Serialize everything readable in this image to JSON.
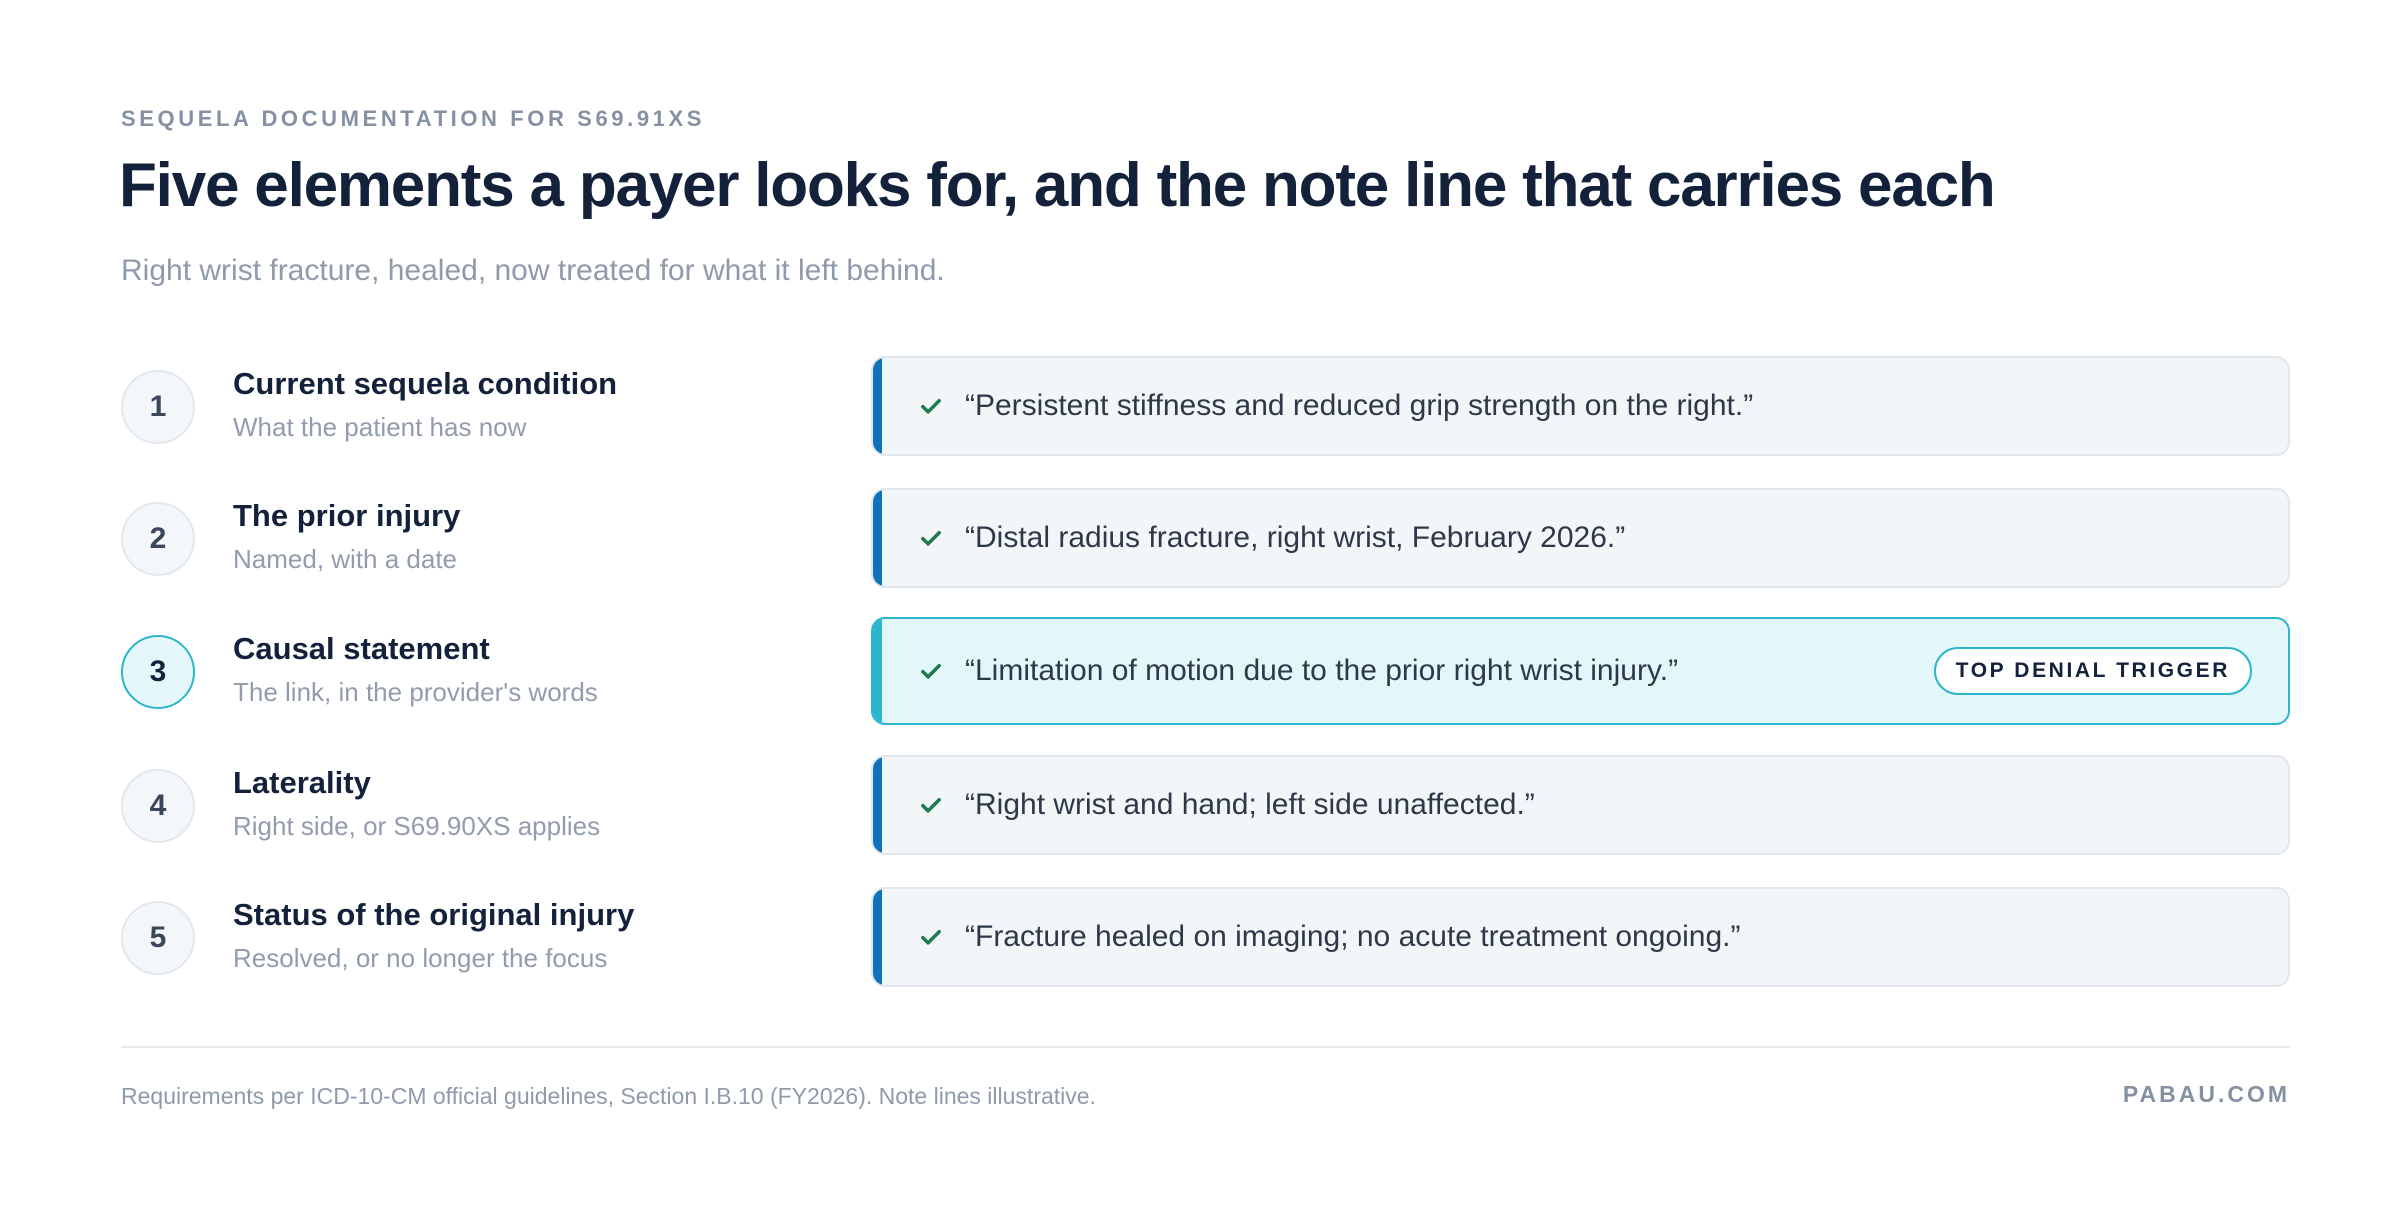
{
  "header": {
    "eyebrow": "SEQUELA DOCUMENTATION FOR S69.91XS",
    "title": "Five elements a payer looks for, and the note line that carries each",
    "subtitle": "Right wrist fracture, healed, now treated for what it left behind."
  },
  "elements": [
    {
      "number": "1",
      "label": "Current sequela condition",
      "sub": "What the patient has now",
      "note": "“Persistent stiffness and reduced grip strength on the right.”"
    },
    {
      "number": "2",
      "label": "The prior injury",
      "sub": "Named, with a date",
      "note": "“Distal radius fracture, right wrist, February 2026.”"
    },
    {
      "number": "3",
      "label": "Causal statement",
      "sub": "The link, in the provider's words",
      "note": "“Limitation of motion due to the prior right wrist injury.”",
      "badge": "TOP DENIAL TRIGGER"
    },
    {
      "number": "4",
      "label": "Laterality",
      "sub": "Right side, or S69.90XS applies",
      "note": "“Right wrist and hand; left side unaffected.”"
    },
    {
      "number": "5",
      "label": "Status of the original injury",
      "sub": "Resolved, or no longer the focus",
      "note": "“Fracture healed on imaging; no acute treatment ongoing.”"
    }
  ],
  "footer": {
    "footnote": "Requirements per ICD-10-CM official guidelines, Section I.B.10 (FY2026). Note lines illustrative.",
    "brand": "PABAU.COM"
  },
  "colors": {
    "accent_blue": "#0e72bd",
    "accent_teal": "#2bb6cc",
    "check_green": "#1f7a4d",
    "title_navy": "#14213a"
  },
  "icons": {
    "check": "check-icon"
  }
}
